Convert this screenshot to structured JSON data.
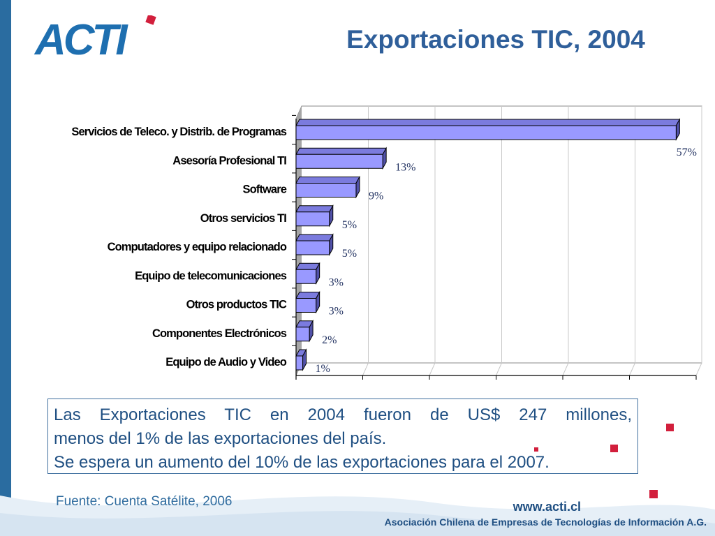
{
  "slide": {
    "logo_text": "ACTI",
    "title": "Exportaciones TIC, 2004",
    "caption_line1": "Las Exportaciones TIC en 2004 fueron de US$ 247 millones,",
    "caption_line2": "menos del 1% de las exportaciones del país.",
    "caption_line3": "Se espera un aumento del 10% de las exportaciones para el 2007.",
    "source": "Fuente: Cuenta Satélite, 2006",
    "website": "www.acti.cl",
    "organization": "Asociación Chilena de Empresas de Tecnologías de Información A.G.",
    "colors": {
      "brand": "#2a6ca0",
      "bar_face": "#9999ff",
      "accent_dots": "#d21f3c"
    }
  },
  "chart_data": {
    "type": "bar",
    "orientation": "horizontal",
    "categories": [
      "Servicios de Teleco. y Distrib. de Programas",
      "Asesoría Profesional TI",
      "Software",
      "Otros servicios TI",
      "Computadores y equipo relacionado",
      "Equipo de telecomunicaciones",
      "Otros productos TIC",
      "Componentes Electrónicos",
      "Equipo de Audio y Video"
    ],
    "values": [
      57,
      13,
      9,
      5,
      5,
      3,
      3,
      2,
      1
    ],
    "labels": [
      "57%",
      "13%",
      "9%",
      "5%",
      "5%",
      "3%",
      "3%",
      "2%",
      "1%"
    ],
    "xlim": [
      0,
      60
    ],
    "title": "",
    "xlabel": "",
    "ylabel": "",
    "grid": true,
    "style": "3d"
  }
}
